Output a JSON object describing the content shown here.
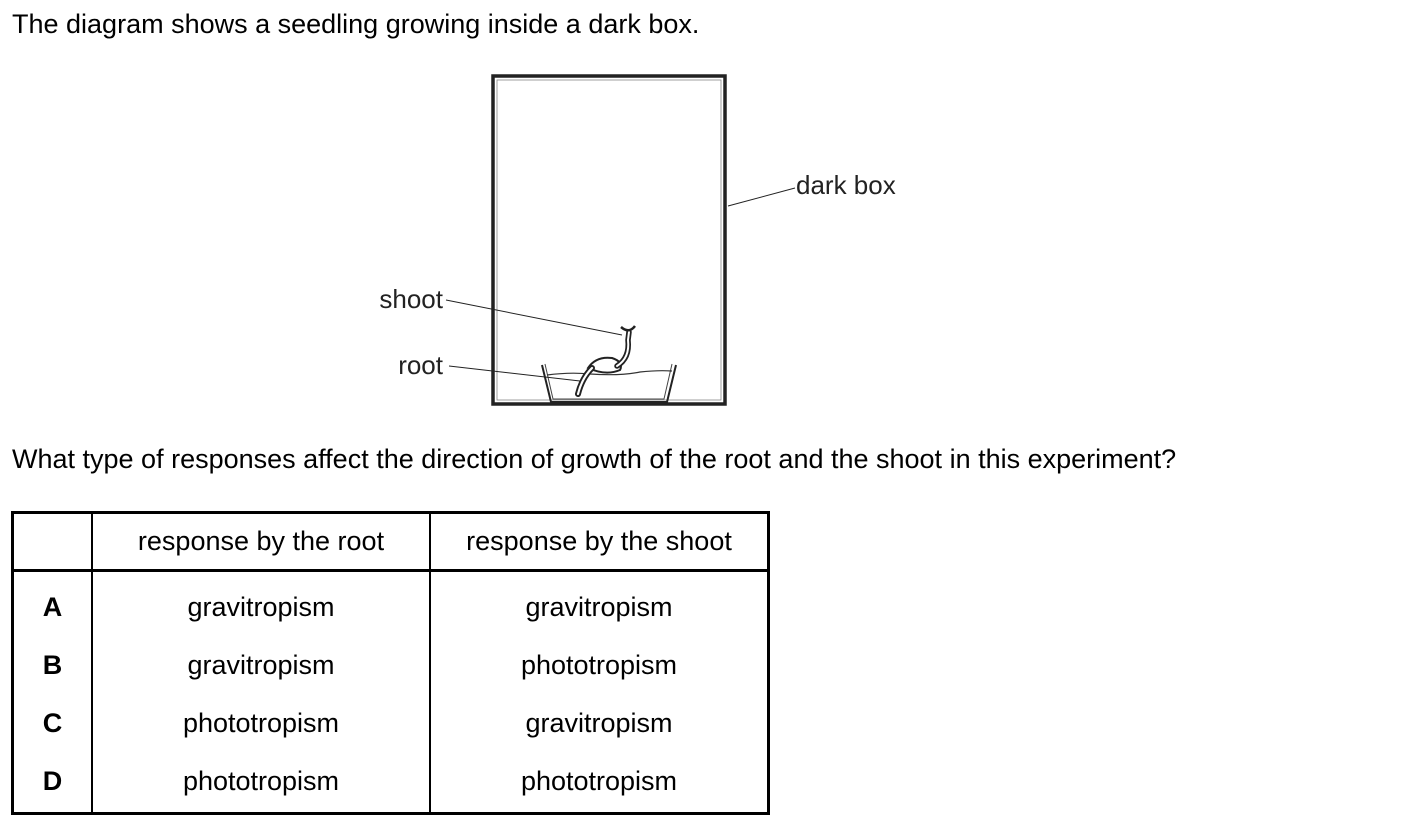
{
  "question": {
    "intro": "The diagram shows a seedling growing inside a dark box.",
    "prompt": "What type of responses affect the direction of growth of the root and the shoot in this experiment?"
  },
  "diagram": {
    "labels": {
      "dark_box": "dark box",
      "shoot": "shoot",
      "root": "root"
    }
  },
  "table": {
    "headers": [
      "",
      "response by the root",
      "response by the shoot"
    ],
    "rows": [
      {
        "option": "A",
        "root": "gravitropism",
        "shoot": "gravitropism"
      },
      {
        "option": "B",
        "root": "gravitropism",
        "shoot": "phototropism"
      },
      {
        "option": "C",
        "root": "phototropism",
        "shoot": "gravitropism"
      },
      {
        "option": "D",
        "root": "phototropism",
        "shoot": "phototropism"
      }
    ]
  }
}
